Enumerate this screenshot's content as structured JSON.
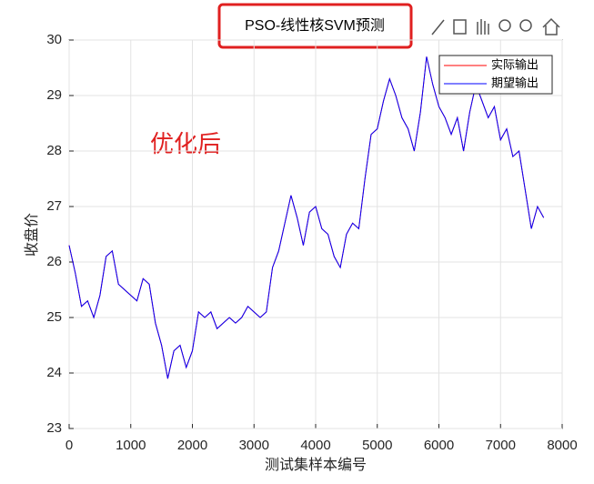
{
  "chart_data": {
    "type": "line",
    "title": "PSO-线性核SVM预测",
    "xlabel": "测试集样本编号",
    "ylabel": "收盘价",
    "annotation": "优化后",
    "x": [
      0,
      100,
      200,
      300,
      400,
      500,
      600,
      700,
      800,
      900,
      1000,
      1100,
      1200,
      1300,
      1400,
      1500,
      1600,
      1700,
      1800,
      1900,
      2000,
      2100,
      2200,
      2300,
      2400,
      2500,
      2600,
      2700,
      2800,
      2900,
      3000,
      3100,
      3200,
      3300,
      3400,
      3500,
      3600,
      3700,
      3800,
      3900,
      4000,
      4100,
      4200,
      4300,
      4400,
      4500,
      4600,
      4700,
      4800,
      4900,
      5000,
      5100,
      5200,
      5300,
      5400,
      5500,
      5600,
      5700,
      5800,
      5900,
      6000,
      6100,
      6200,
      6300,
      6400,
      6500,
      6600,
      6700,
      6800,
      6900,
      7000,
      7100,
      7200,
      7300,
      7400,
      7500,
      7600,
      7700
    ],
    "series": [
      {
        "name": "实际输出",
        "color": "#ff0000",
        "values": [
          26.3,
          25.8,
          25.2,
          25.3,
          25.0,
          25.4,
          26.1,
          26.2,
          25.6,
          25.5,
          25.4,
          25.3,
          25.7,
          25.6,
          24.9,
          24.5,
          23.9,
          24.4,
          24.5,
          24.1,
          24.4,
          25.1,
          25.0,
          25.1,
          24.8,
          24.9,
          25.0,
          24.9,
          25.0,
          25.2,
          25.1,
          25.0,
          25.1,
          25.9,
          26.2,
          26.7,
          27.2,
          26.8,
          26.3,
          26.9,
          27.0,
          26.6,
          26.5,
          26.1,
          25.9,
          26.5,
          26.7,
          26.6,
          27.5,
          28.3,
          28.4,
          28.9,
          29.3,
          29.0,
          28.6,
          28.4,
          28.0,
          28.7,
          29.7,
          29.2,
          28.8,
          28.6,
          28.3,
          28.6,
          28.0,
          28.7,
          29.2,
          28.9,
          28.6,
          28.8,
          28.2,
          28.4,
          27.9,
          28.0,
          27.3,
          26.6,
          27.0,
          26.8
        ]
      },
      {
        "name": "期望输出",
        "color": "#0000ff",
        "values": [
          26.3,
          25.8,
          25.2,
          25.3,
          25.0,
          25.4,
          26.1,
          26.2,
          25.6,
          25.5,
          25.4,
          25.3,
          25.7,
          25.6,
          24.9,
          24.5,
          23.9,
          24.4,
          24.5,
          24.1,
          24.4,
          25.1,
          25.0,
          25.1,
          24.8,
          24.9,
          25.0,
          24.9,
          25.0,
          25.2,
          25.1,
          25.0,
          25.1,
          25.9,
          26.2,
          26.7,
          27.2,
          26.8,
          26.3,
          26.9,
          27.0,
          26.6,
          26.5,
          26.1,
          25.9,
          26.5,
          26.7,
          26.6,
          27.5,
          28.3,
          28.4,
          28.9,
          29.3,
          29.0,
          28.6,
          28.4,
          28.0,
          28.7,
          29.7,
          29.2,
          28.8,
          28.6,
          28.3,
          28.6,
          28.0,
          28.7,
          29.2,
          28.9,
          28.6,
          28.8,
          28.2,
          28.4,
          27.9,
          28.0,
          27.3,
          26.6,
          27.0,
          26.8
        ]
      }
    ],
    "xlim": [
      0,
      8000
    ],
    "xticks": [
      0,
      1000,
      2000,
      3000,
      4000,
      5000,
      6000,
      7000,
      8000
    ],
    "ylim": [
      23,
      30
    ],
    "yticks": [
      23,
      24,
      25,
      26,
      27,
      28,
      29,
      30
    ],
    "grid": true,
    "legend": "northeast"
  }
}
